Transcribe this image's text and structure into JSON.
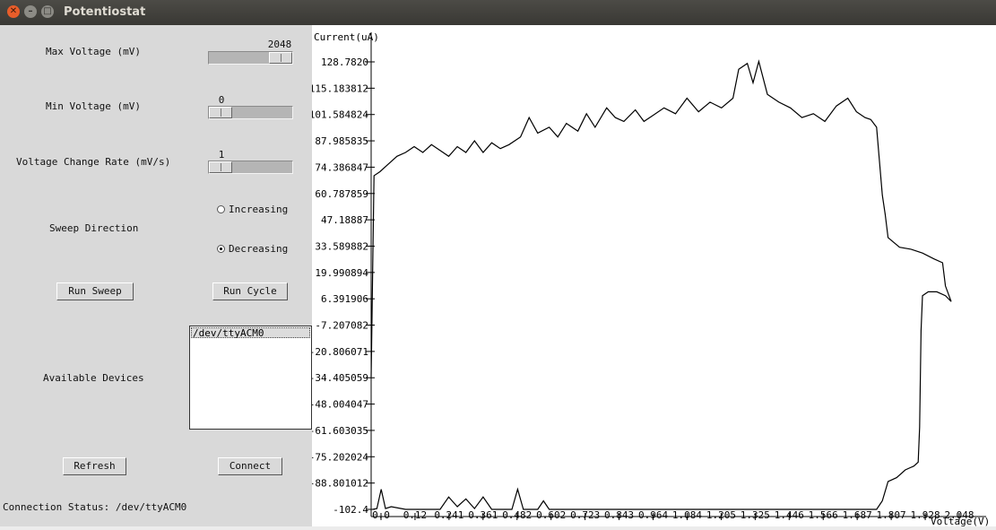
{
  "window": {
    "title": "Potentiostat"
  },
  "controls": {
    "max_voltage": {
      "label": "Max Voltage (mV)",
      "value": "2048",
      "fraction": 1.0
    },
    "min_voltage": {
      "label": "Min Voltage (mV)",
      "value": "0",
      "fraction": 0.0
    },
    "rate": {
      "label": "Voltage Change Rate (mV/s)",
      "value": "1",
      "fraction": 0.0
    },
    "sweep": {
      "label": "Sweep Direction",
      "options": [
        "Increasing",
        "Decreasing"
      ],
      "selected": "Decreasing"
    },
    "run_sweep": "Run Sweep",
    "run_cycle": "Run Cycle",
    "devices_label": "Available Devices",
    "devices": [
      "/dev/ttyACM0"
    ],
    "refresh": "Refresh",
    "connect": "Connect",
    "status": "Connection Status: /dev/ttyACM0"
  },
  "chart_data": {
    "type": "line",
    "xlabel": "Voltage(V)",
    "ylabel": "Current(uA)",
    "xlim": [
      0,
      2.048
    ],
    "ylim": [
      -102.4,
      128.782
    ],
    "x_ticks": [
      "0.0",
      "0.12",
      "0.241",
      "0.361",
      "0.482",
      "0.602",
      "0.723",
      "0.843",
      "0.964",
      "1.084",
      "1.205",
      "1.325",
      "1.446",
      "1.566",
      "1.687",
      "1.807",
      "1.928",
      "2.048"
    ],
    "y_ticks": [
      "128.7820",
      "115.183812",
      "101.584824",
      "87.985835",
      "74.386847",
      "60.787859",
      "47.18887",
      "33.589882",
      "19.990894",
      "6.391906",
      "-7.207082",
      "-20.806071",
      "-34.405059",
      "-48.004047",
      "-61.603035",
      "-75.202024",
      "-88.801012",
      "-102.4"
    ],
    "series": [
      {
        "values": [
          [
            0.0,
            -34
          ],
          [
            0.01,
            70
          ],
          [
            0.03,
            72
          ],
          [
            0.06,
            76
          ],
          [
            0.09,
            80
          ],
          [
            0.12,
            82
          ],
          [
            0.15,
            85
          ],
          [
            0.18,
            82
          ],
          [
            0.21,
            86
          ],
          [
            0.24,
            83
          ],
          [
            0.27,
            80
          ],
          [
            0.3,
            85
          ],
          [
            0.33,
            82
          ],
          [
            0.36,
            88
          ],
          [
            0.39,
            82
          ],
          [
            0.42,
            87
          ],
          [
            0.45,
            84
          ],
          [
            0.48,
            86
          ],
          [
            0.52,
            90
          ],
          [
            0.55,
            100
          ],
          [
            0.58,
            92
          ],
          [
            0.62,
            95
          ],
          [
            0.65,
            90
          ],
          [
            0.68,
            97
          ],
          [
            0.72,
            93
          ],
          [
            0.75,
            102
          ],
          [
            0.78,
            95
          ],
          [
            0.82,
            105
          ],
          [
            0.85,
            100
          ],
          [
            0.88,
            98
          ],
          [
            0.92,
            104
          ],
          [
            0.95,
            98
          ],
          [
            0.98,
            101
          ],
          [
            1.02,
            105
          ],
          [
            1.06,
            102
          ],
          [
            1.1,
            110
          ],
          [
            1.14,
            103
          ],
          [
            1.18,
            108
          ],
          [
            1.22,
            105
          ],
          [
            1.26,
            110
          ],
          [
            1.28,
            125
          ],
          [
            1.31,
            128
          ],
          [
            1.33,
            118
          ],
          [
            1.35,
            129
          ],
          [
            1.38,
            112
          ],
          [
            1.42,
            108
          ],
          [
            1.46,
            105
          ],
          [
            1.5,
            100
          ],
          [
            1.54,
            102
          ],
          [
            1.58,
            98
          ],
          [
            1.62,
            106
          ],
          [
            1.66,
            110
          ],
          [
            1.69,
            103
          ],
          [
            1.72,
            100
          ],
          [
            1.74,
            99
          ],
          [
            1.76,
            95
          ],
          [
            1.78,
            60
          ],
          [
            1.79,
            50
          ],
          [
            1.8,
            38
          ],
          [
            1.84,
            33
          ],
          [
            1.88,
            32
          ],
          [
            1.92,
            30
          ],
          [
            1.96,
            27
          ],
          [
            1.99,
            25
          ],
          [
            2.0,
            13
          ],
          [
            2.02,
            5
          ],
          [
            2.0,
            8
          ],
          [
            1.97,
            10
          ],
          [
            1.94,
            10
          ],
          [
            1.92,
            8
          ],
          [
            1.915,
            -10
          ],
          [
            1.91,
            -60
          ],
          [
            1.905,
            -78
          ],
          [
            1.89,
            -80
          ],
          [
            1.86,
            -82
          ],
          [
            1.83,
            -86
          ],
          [
            1.8,
            -88
          ],
          [
            1.78,
            -98
          ],
          [
            1.76,
            -102.4
          ],
          [
            1.5,
            -102.4
          ],
          [
            1.2,
            -102.4
          ],
          [
            0.9,
            -102.4
          ],
          [
            0.62,
            -102.4
          ],
          [
            0.6,
            -98
          ],
          [
            0.58,
            -102.4
          ],
          [
            0.53,
            -102.4
          ],
          [
            0.51,
            -92
          ],
          [
            0.49,
            -102.4
          ],
          [
            0.42,
            -102.4
          ],
          [
            0.39,
            -96
          ],
          [
            0.36,
            -102
          ],
          [
            0.33,
            -97
          ],
          [
            0.3,
            -101
          ],
          [
            0.27,
            -96
          ],
          [
            0.24,
            -102.4
          ],
          [
            0.12,
            -102.4
          ],
          [
            0.07,
            -101
          ],
          [
            0.05,
            -102
          ],
          [
            0.035,
            -92
          ],
          [
            0.02,
            -102
          ],
          [
            0.005,
            -102.4
          ]
        ]
      }
    ]
  }
}
